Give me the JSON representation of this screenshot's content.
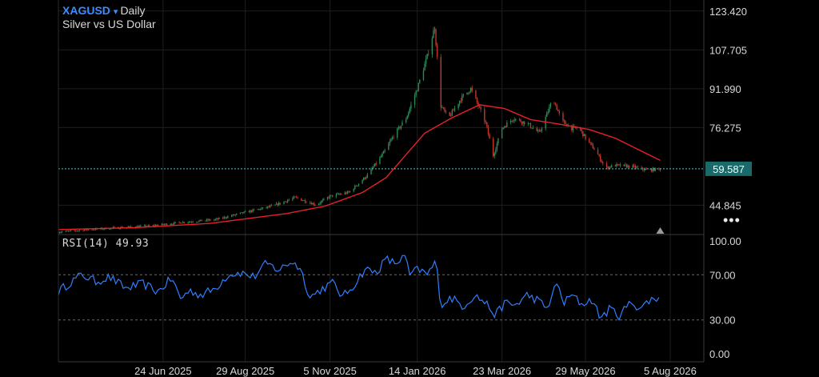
{
  "header": {
    "symbol": "XAGUSD",
    "caret_icon": "▾",
    "timeframe": "Daily",
    "description": "Silver vs US Dollar"
  },
  "more_icon": "•••",
  "colors": {
    "background": "#000000",
    "grid": "#1e1e1e",
    "axis_text": "#d7d7d7",
    "up_candle": "#2e8b57",
    "down_candle": "#c0392b",
    "moving_average": "#e8202a",
    "price_line": "#4fc3c3",
    "price_badge_bg": "#1b6a6a",
    "rsi_line": "#2f7fff",
    "rsi_band": "#6a6a6a"
  },
  "chart_data": [
    {
      "type": "candlestick",
      "symbol": "XAGUSD",
      "timeframe": "Daily",
      "title": "Silver vs US Dollar",
      "y_axis_ticks": [
        "123.420",
        "107.705",
        "91.990",
        "76.275",
        "44.845"
      ],
      "ylim": [
        33,
        124
      ],
      "last_price": "59.587",
      "x_axis_ticks": [
        "24 Jun 2025",
        "29 Aug 2025",
        "5 Nov 2025",
        "14 Jan 2026",
        "23 Mar 2026",
        "29 May 2026",
        "5 Aug 2026"
      ],
      "x_range": [
        "2025-04-01",
        "2026-09-01"
      ],
      "data_end": "2026-07-28",
      "grid": true,
      "close_path": [
        [
          "2025-04-01",
          34.0
        ],
        [
          "2025-04-25",
          35.0
        ],
        [
          "2025-05-20",
          35.8
        ],
        [
          "2025-06-15",
          36.5
        ],
        [
          "2025-07-10",
          38.0
        ],
        [
          "2025-08-05",
          39.0
        ],
        [
          "2025-08-29",
          42.0
        ],
        [
          "2025-09-20",
          44.5
        ],
        [
          "2025-10-08",
          48.0
        ],
        [
          "2025-10-25",
          45.0
        ],
        [
          "2025-11-05",
          48.5
        ],
        [
          "2025-11-20",
          50.0
        ],
        [
          "2025-12-05",
          57.0
        ],
        [
          "2025-12-18",
          66.0
        ],
        [
          "2025-12-26",
          73.0
        ],
        [
          "2026-01-05",
          80.0
        ],
        [
          "2026-01-14",
          92.0
        ],
        [
          "2026-01-22",
          105.0
        ],
        [
          "2026-01-28",
          117.0
        ],
        [
          "2026-02-02",
          85.0
        ],
        [
          "2026-02-08",
          80.0
        ],
        [
          "2026-02-18",
          88.0
        ],
        [
          "2026-02-26",
          92.0
        ],
        [
          "2026-03-05",
          84.0
        ],
        [
          "2026-03-10",
          78.0
        ],
        [
          "2026-03-16",
          65.0
        ],
        [
          "2026-03-23",
          76.0
        ],
        [
          "2026-04-01",
          80.0
        ],
        [
          "2026-04-12",
          78.0
        ],
        [
          "2026-04-22",
          74.0
        ],
        [
          "2026-05-03",
          88.0
        ],
        [
          "2026-05-10",
          79.0
        ],
        [
          "2026-05-18",
          76.0
        ],
        [
          "2026-05-24",
          76.0
        ],
        [
          "2026-05-29",
          72.0
        ],
        [
          "2026-06-06",
          67.0
        ],
        [
          "2026-06-14",
          60.0
        ],
        [
          "2026-06-22",
          61.0
        ],
        [
          "2026-07-05",
          60.5
        ],
        [
          "2026-07-18",
          59.0
        ],
        [
          "2026-07-28",
          59.587
        ]
      ],
      "moving_average": [
        [
          "2025-04-01",
          35.0
        ],
        [
          "2025-06-01",
          35.8
        ],
        [
          "2025-08-01",
          37.5
        ],
        [
          "2025-10-01",
          41.5
        ],
        [
          "2025-11-01",
          44.5
        ],
        [
          "2025-12-01",
          50.0
        ],
        [
          "2025-12-20",
          56.0
        ],
        [
          "2026-01-01",
          63.0
        ],
        [
          "2026-01-20",
          74.0
        ],
        [
          "2026-02-10",
          80.0
        ],
        [
          "2026-03-05",
          85.5
        ],
        [
          "2026-03-25",
          84.0
        ],
        [
          "2026-04-15",
          79.5
        ],
        [
          "2026-05-10",
          77.5
        ],
        [
          "2026-06-01",
          75.5
        ],
        [
          "2026-06-22",
          72.0
        ],
        [
          "2026-07-10",
          67.5
        ],
        [
          "2026-07-28",
          63.0
        ]
      ]
    },
    {
      "type": "line",
      "title": "RSI(14)",
      "last_value": "49.93",
      "y_axis_ticks": [
        "100.00",
        "70.00",
        "30.00",
        "0.00"
      ],
      "ylim": [
        0,
        100
      ],
      "bands": [
        70,
        30
      ],
      "series": [
        {
          "values": [
            [
              "2025-04-01",
              55
            ],
            [
              "2025-04-10",
              63
            ],
            [
              "2025-04-20",
              70
            ],
            [
              "2025-05-01",
              64
            ],
            [
              "2025-05-12",
              68
            ],
            [
              "2025-05-25",
              58
            ],
            [
              "2025-06-08",
              62
            ],
            [
              "2025-06-20",
              55
            ],
            [
              "2025-07-01",
              67
            ],
            [
              "2025-07-08",
              49
            ],
            [
              "2025-07-15",
              56
            ],
            [
              "2025-07-25",
              52
            ],
            [
              "2025-08-05",
              58
            ],
            [
              "2025-08-15",
              70
            ],
            [
              "2025-08-25",
              72
            ],
            [
              "2025-09-05",
              68
            ],
            [
              "2025-09-15",
              80
            ],
            [
              "2025-09-25",
              74
            ],
            [
              "2025-10-05",
              82
            ],
            [
              "2025-10-12",
              76
            ],
            [
              "2025-10-20",
              50
            ],
            [
              "2025-10-30",
              58
            ],
            [
              "2025-11-08",
              63
            ],
            [
              "2025-11-15",
              50
            ],
            [
              "2025-11-25",
              62
            ],
            [
              "2025-12-03",
              75
            ],
            [
              "2025-12-12",
              72
            ],
            [
              "2025-12-20",
              84
            ],
            [
              "2025-12-27",
              80
            ],
            [
              "2026-01-04",
              86
            ],
            [
              "2026-01-08",
              70
            ],
            [
              "2026-01-15",
              75
            ],
            [
              "2026-01-22",
              70
            ],
            [
              "2026-01-29",
              82
            ],
            [
              "2026-02-02",
              43
            ],
            [
              "2026-02-10",
              50
            ],
            [
              "2026-02-20",
              42
            ],
            [
              "2026-03-01",
              52
            ],
            [
              "2026-03-10",
              45
            ],
            [
              "2026-03-18",
              34
            ],
            [
              "2026-03-25",
              45
            ],
            [
              "2026-04-03",
              43
            ],
            [
              "2026-04-12",
              52
            ],
            [
              "2026-04-20",
              48
            ],
            [
              "2026-04-28",
              40
            ],
            [
              "2026-05-06",
              62
            ],
            [
              "2026-05-12",
              45
            ],
            [
              "2026-05-18",
              52
            ],
            [
              "2026-05-26",
              44
            ],
            [
              "2026-06-03",
              48
            ],
            [
              "2026-06-10",
              32
            ],
            [
              "2026-06-18",
              40
            ],
            [
              "2026-06-25",
              34
            ],
            [
              "2026-07-05",
              46
            ],
            [
              "2026-07-12",
              40
            ],
            [
              "2026-07-20",
              48
            ],
            [
              "2026-07-28",
              49.93
            ]
          ]
        }
      ]
    }
  ]
}
